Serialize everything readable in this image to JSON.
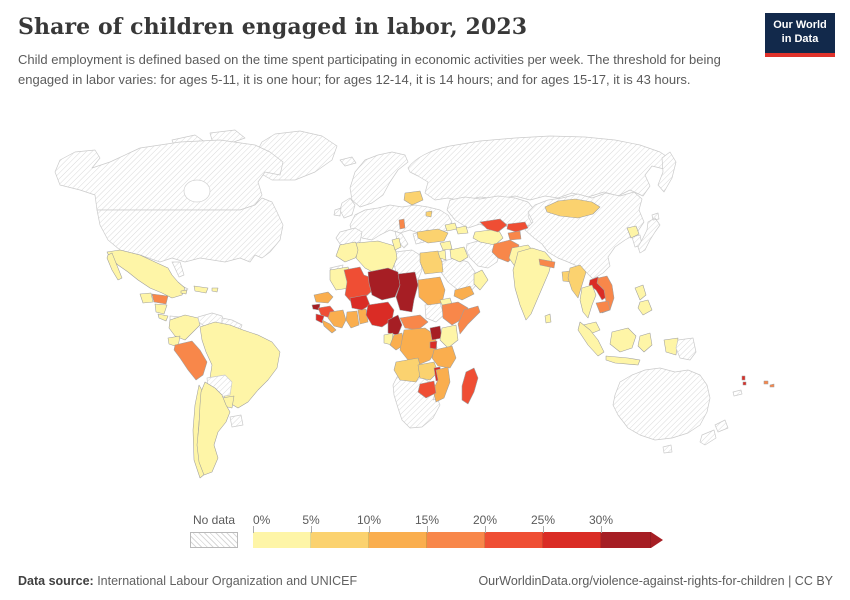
{
  "header": {
    "title": "Share of children engaged in labor, 2023",
    "subtitle": "Child employment is defined based on the time spent participating in economic activities per week. The threshold for being engaged in labor varies: for ages 5-11, it is one hour; for ages 12-14, it is 14 hours; and for ages 15-17, it is 43 hours.",
    "logo": {
      "line1": "Our World",
      "line2": "in Data"
    }
  },
  "legend": {
    "no_data_label": "No data",
    "ticks": [
      "0%",
      "5%",
      "10%",
      "15%",
      "20%",
      "25%",
      "30%"
    ]
  },
  "footer": {
    "source_label": "Data source:",
    "source_text": " International Labour Organization and UNICEF",
    "url": "OurWorldinData.org/violence-against-rights-for-children",
    "divider": " | ",
    "license": "CC BY"
  },
  "chart_data": {
    "type": "choropleth_map",
    "title": "Share of children engaged in labor, 2023",
    "unit": "% of children in child labor",
    "projection": "world",
    "legend_position": "bottom",
    "no_data": {
      "label": "No data",
      "style": "diagonal-hatch",
      "line_color": "#d9d9d9",
      "border_color": "#cbcbcb"
    },
    "bins": [
      {
        "range": "0-5%",
        "color": "#FEF5A7"
      },
      {
        "range": "5-10%",
        "color": "#FBD26F"
      },
      {
        "range": "10-15%",
        "color": "#FAAE4E"
      },
      {
        "range": "15-20%",
        "color": "#F8874A"
      },
      {
        "range": "20-25%",
        "color": "#EF4E34"
      },
      {
        "range": "25-30%",
        "color": "#DA2C25"
      },
      {
        "range": "30%+",
        "color": "#A61E24"
      }
    ],
    "countries": {
      "canada": "no_data",
      "united-states": "no_data",
      "alaska": "no_data",
      "greenland": "no_data",
      "arctic-islands": "no_data",
      "cuba": "no_data",
      "panama": "no_data",
      "venezuela": "no_data",
      "guyanas": "no_data",
      "bolivia": "no_data",
      "uruguay": "no_data",
      "iceland": "no_data",
      "scandinavia": "no_data",
      "united-kingdom": "no_data",
      "ireland": "no_data",
      "europe-mainland": "no_data",
      "iberia": "no_data",
      "italy": "no_data",
      "greece": "no_data",
      "russia": "no_data",
      "kamchatka": "no_data",
      "kazakhstan": "no_data",
      "china": "no_data",
      "iran": "no_data",
      "saudi-arabia": "no_data",
      "libya": "no_data",
      "western-sahara": "no_data",
      "south-sudan": "no_data",
      "southern-africa": "no_data",
      "south-korea": "no_data",
      "japan": "no_data",
      "australia": "no_data",
      "tasmania": "no_data",
      "new-zealand": "no_data",
      "papua-new-guinea": "no_data",
      "new-caledonia": "no_data",
      "mexico": 0,
      "baja-california": 0,
      "guatemala": 0,
      "nicaragua": 0,
      "costa-rica": 0,
      "hispaniola": 0,
      "jamaica": 0,
      "puerto-rico": 0,
      "colombia": 0,
      "ecuador": 0,
      "brazil": 0,
      "paraguay": 0,
      "argentina": 0,
      "chile": 0,
      "morocco": 0,
      "algeria": 0,
      "tunisia": 0,
      "mauritania": 0,
      "eritrea": 0,
      "kenya": 0,
      "gabon": 0,
      "georgia": 0,
      "azerbaijan": 0,
      "syria": 0,
      "iraq": 0,
      "jordan": 0,
      "oman": 0,
      "turkmenistan": 0,
      "pakistan": 0,
      "india": 0,
      "sri-lanka": 0,
      "thailand": 0,
      "malaysia": 0,
      "sumatra": 0,
      "java": 0,
      "borneo": 0,
      "sulawesi": 0,
      "west-papua": 0,
      "philippines-north": 0,
      "philippines-south": 0,
      "north-korea": 0,
      "egypt": 1,
      "belarus": 1,
      "moldova": 1,
      "turkey": 1,
      "mongolia": 1,
      "bangladesh": 1,
      "myanmar": 1,
      "angola": 1,
      "zambia": 1,
      "sudan": 2,
      "senegal": 2,
      "liberia": 2,
      "cote-divoire": 2,
      "ghana": 2,
      "togo-benin": 2,
      "congo": 2,
      "dr-congo": 2,
      "tanzania": 2,
      "mozambique": 2,
      "yemen": 2,
      "honduras": 3,
      "peru": 3,
      "ethiopia": 3,
      "somalia": 3,
      "central-african-republic": 3,
      "albania": 3,
      "tajikistan": 3,
      "afghanistan": 3,
      "nepal": 3,
      "vietnam": 3,
      "cambodia": 3,
      "fiji": 3,
      "mali": 4,
      "guinea": 4,
      "zimbabwe": 4,
      "madagascar": 4,
      "uzbekistan": 4,
      "kyrgyzstan": 4,
      "burkina-faso": 5,
      "sierra-leone": 5,
      "nigeria": 5,
      "rwanda-burundi": 5,
      "malawi": 5,
      "laos": 5,
      "vanuatu": 5,
      "niger": 6,
      "chad": 6,
      "cameroon": 6,
      "guinea-bissau": 6,
      "uganda": 6
    }
  }
}
